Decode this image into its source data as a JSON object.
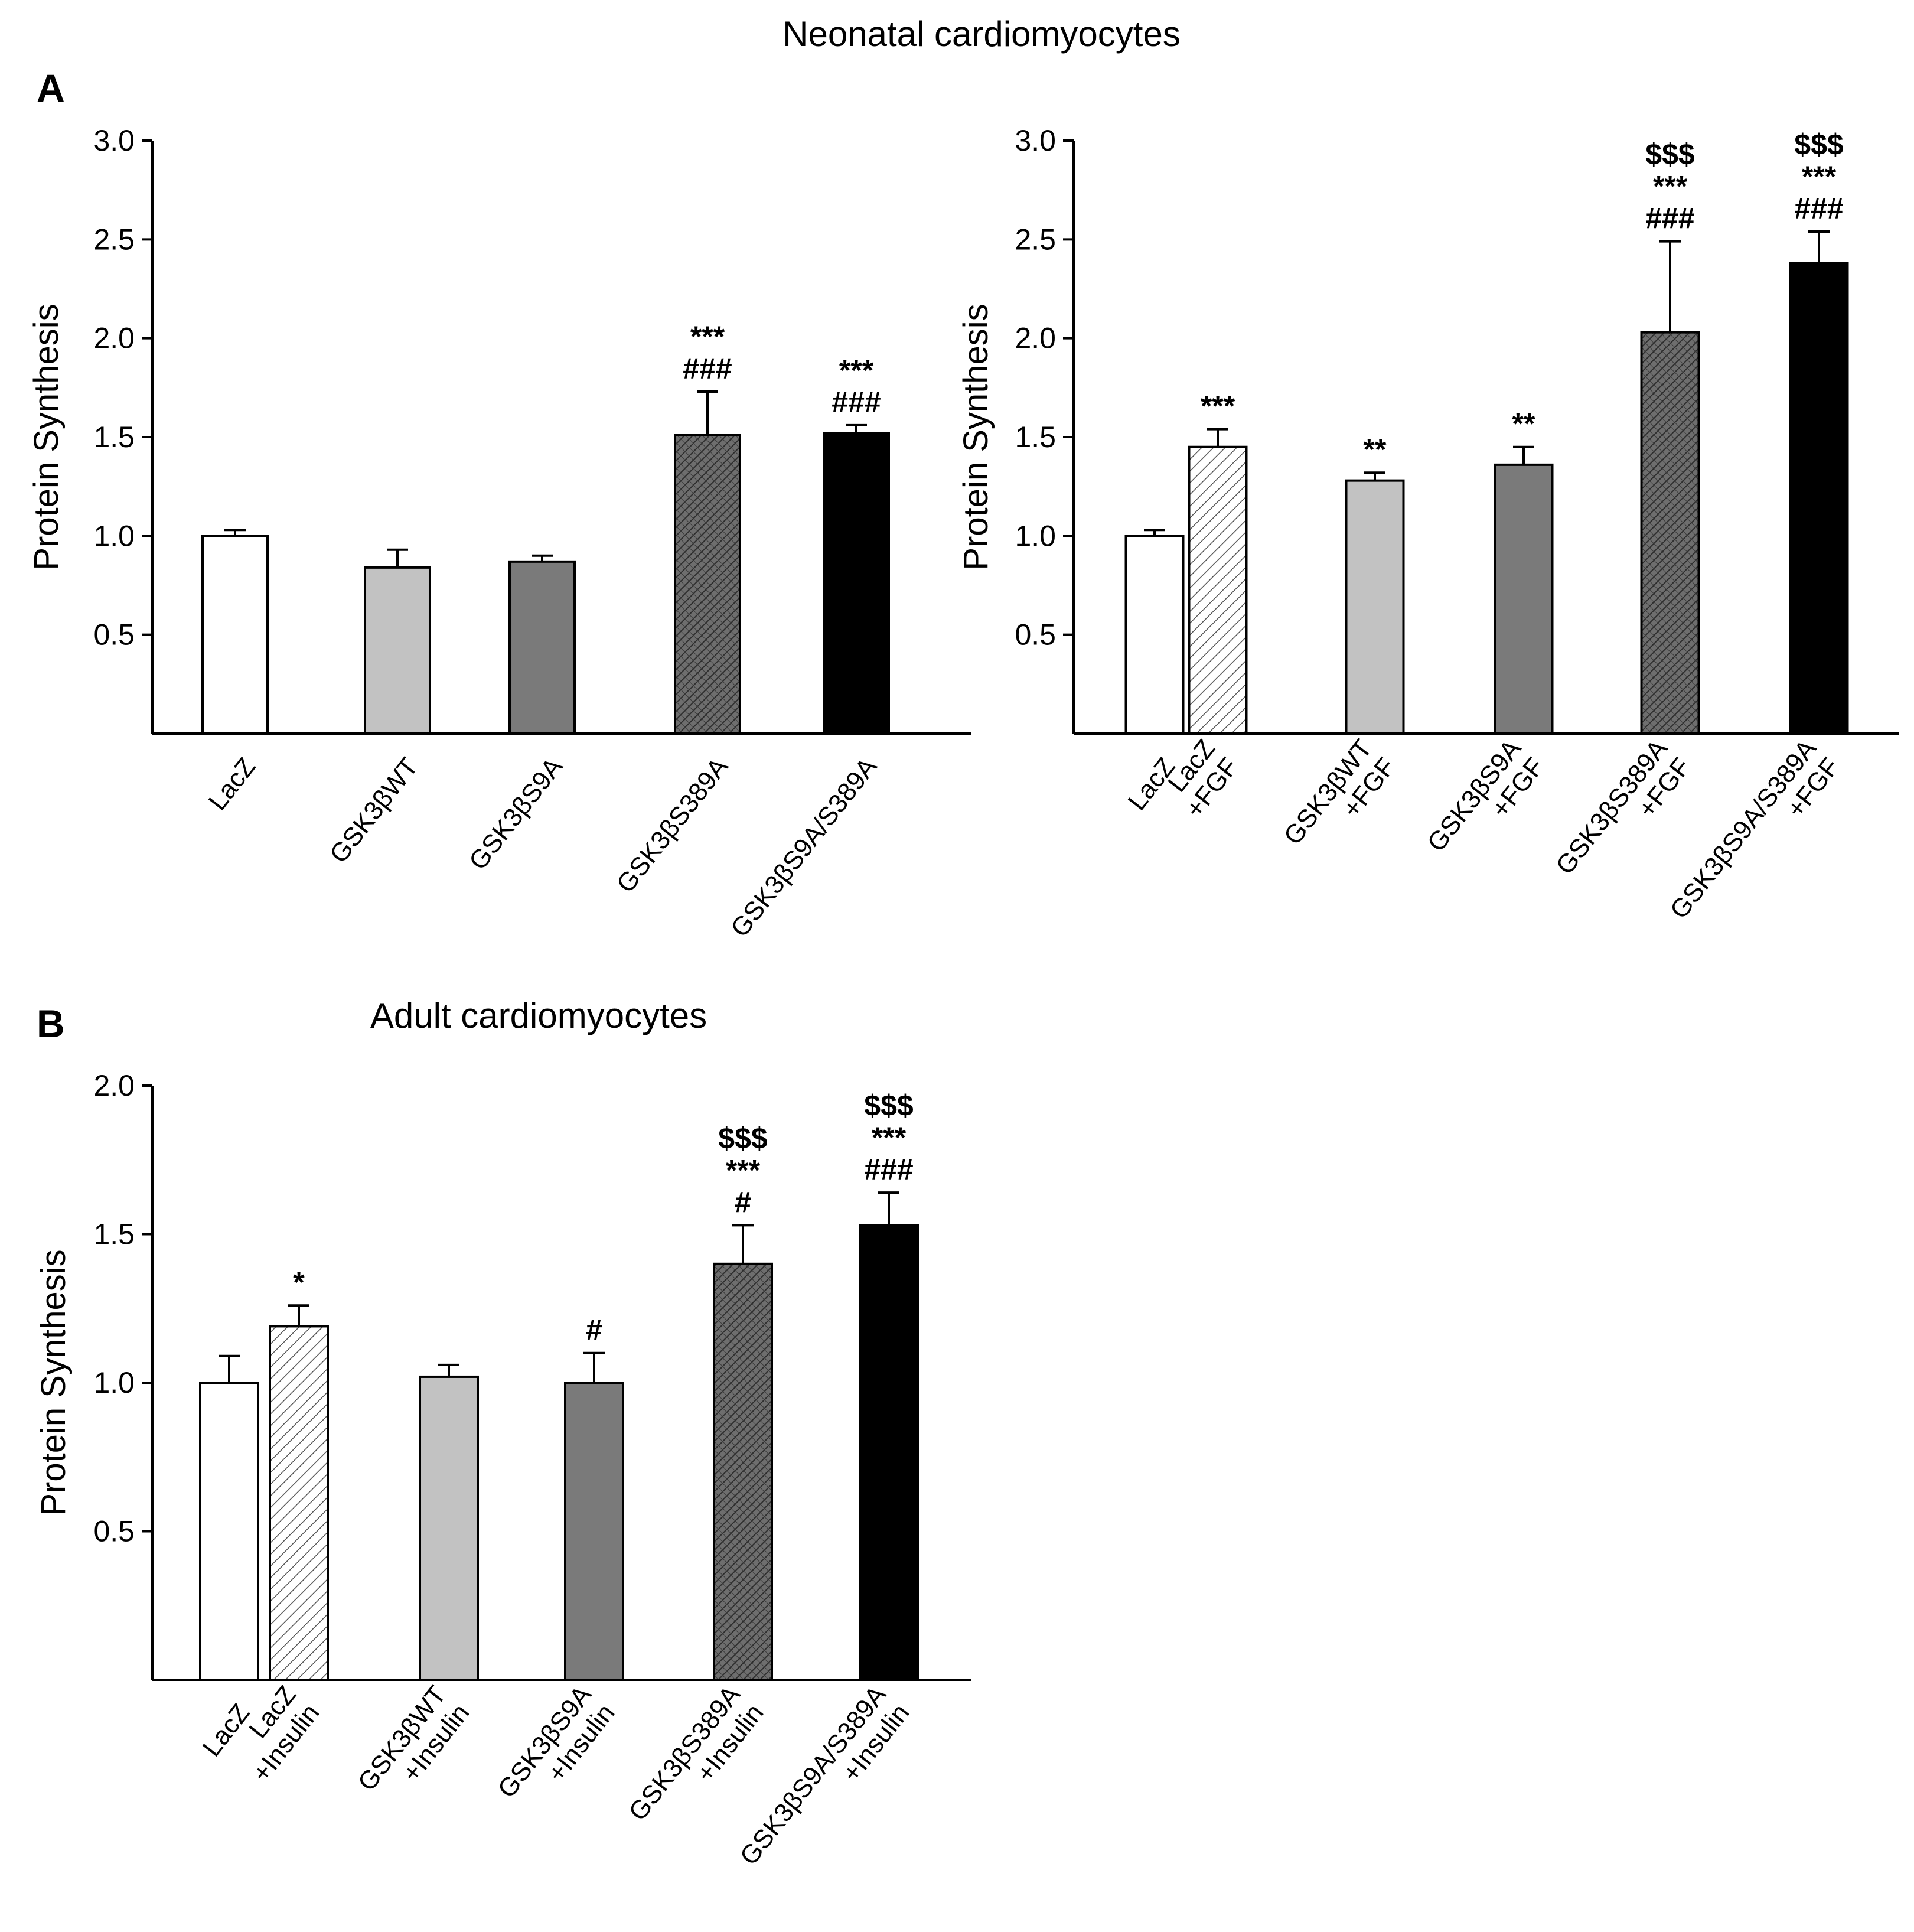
{
  "figure": {
    "title": "Neonatal cardiomyocytes",
    "panel_a_letter": "A",
    "panel_b_letter": "B",
    "panel_b_title": "Adult cardiomyocytes"
  },
  "chart_data": [
    {
      "id": "A-left",
      "type": "bar",
      "title": "",
      "xlabel": "",
      "ylabel": "Protein Synthesis",
      "ylim": [
        0,
        3.0
      ],
      "yticks": [
        "0.5",
        "1.0",
        "1.5",
        "2.0",
        "2.5",
        "3.0"
      ],
      "categories": [
        [
          "LacZ"
        ],
        [
          "GSK3βWT"
        ],
        [
          "GSK3βS9A"
        ],
        [
          "GSK3βS389A"
        ],
        [
          "GSK3βS9A/S389A"
        ]
      ],
      "values": [
        1.0,
        0.84,
        0.87,
        1.51,
        1.52
      ],
      "errors": [
        0.03,
        0.09,
        0.03,
        0.22,
        0.04
      ],
      "fills": [
        "white",
        "light",
        "medium",
        "hatch",
        "black"
      ],
      "annotations": [
        [],
        [],
        [],
        [
          "***",
          "###"
        ],
        [
          "***",
          "###"
        ]
      ]
    },
    {
      "id": "A-right",
      "type": "bar",
      "title": "",
      "xlabel": "",
      "ylabel": "Protein Synthesis",
      "ylim": [
        0,
        3.0
      ],
      "yticks": [
        "0.5",
        "1.0",
        "1.5",
        "2.0",
        "2.5",
        "3.0"
      ],
      "categories": [
        [
          "LacZ"
        ],
        [
          "LacZ",
          "+FGF"
        ],
        [
          "GSK3βWT",
          "+FGF"
        ],
        [
          "GSK3βS9A",
          "+FGF"
        ],
        [
          "GSK3βS389A",
          "+FGF"
        ],
        [
          "GSK3βS9A/S389A",
          "+FGF"
        ]
      ],
      "values": [
        1.0,
        1.45,
        1.28,
        1.36,
        2.03,
        2.38
      ],
      "errors": [
        0.03,
        0.09,
        0.04,
        0.09,
        0.46,
        0.16
      ],
      "fills": [
        "white",
        "diag",
        "light",
        "medium",
        "hatch",
        "black"
      ],
      "annotations": [
        [],
        [
          "***"
        ],
        [
          "**"
        ],
        [
          "**"
        ],
        [
          "$$$",
          "***",
          "###"
        ],
        [
          "$$$",
          "***",
          "###"
        ]
      ]
    },
    {
      "id": "B",
      "type": "bar",
      "title": "Adult cardiomyocytes",
      "xlabel": "",
      "ylabel": "Protein Synthesis",
      "ylim": [
        0,
        2.0
      ],
      "yticks": [
        "0.5",
        "1.0",
        "1.5",
        "2.0"
      ],
      "categories": [
        [
          "LacZ"
        ],
        [
          "LacZ",
          "+Insulin"
        ],
        [
          "GSK3βWT",
          "+Insulin"
        ],
        [
          "GSK3βS9A",
          "+Insulin"
        ],
        [
          "GSK3βS389A",
          "+Insulin"
        ],
        [
          "GSK3βS9A/S389A",
          "+Insulin"
        ]
      ],
      "values": [
        1.0,
        1.19,
        1.02,
        1.0,
        1.4,
        1.53
      ],
      "errors": [
        0.09,
        0.07,
        0.04,
        0.1,
        0.13,
        0.11
      ],
      "fills": [
        "white",
        "diag",
        "light",
        "medium",
        "hatch",
        "black"
      ],
      "annotations": [
        [],
        [
          "*"
        ],
        [],
        [
          "#"
        ],
        [
          "$$$",
          "***",
          "#"
        ],
        [
          "$$$",
          "***",
          "###"
        ]
      ]
    }
  ]
}
